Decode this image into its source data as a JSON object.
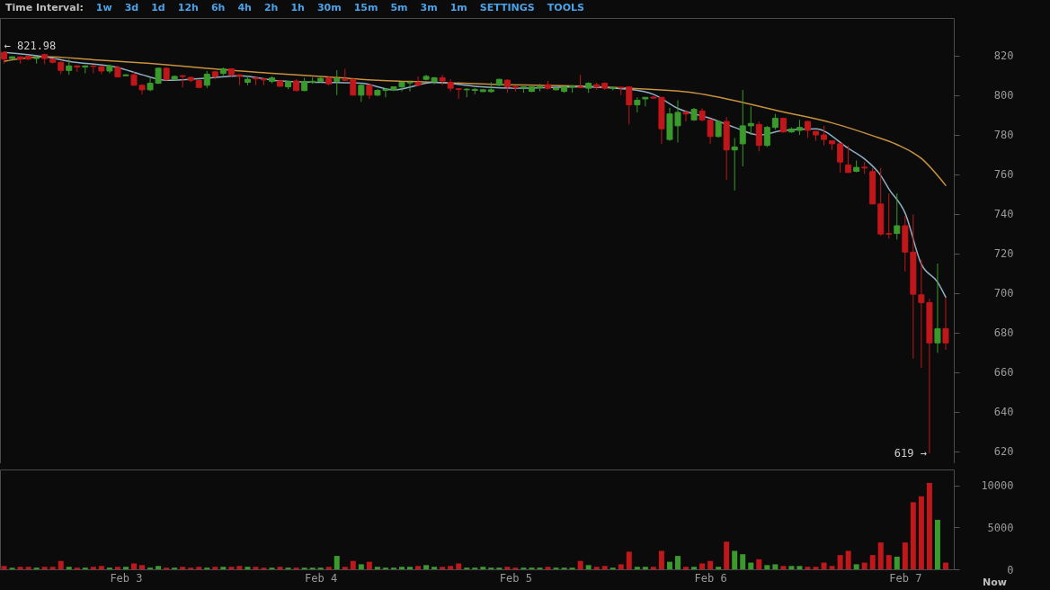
{
  "chart_data": [
    {
      "type": "candlestick",
      "tick_labels": "y",
      "annotations": [
        "Time Interval:",
        "1w",
        "3d",
        "1d",
        "12h",
        "6h",
        "4h",
        "2h",
        "1h",
        "30m",
        "15m",
        "5m",
        "3m",
        "1m",
        "SETTINGS",
        "TOOLS",
        {
          "text": "← 821.98",
          "x": "--02-02T09:00",
          "y": 821.98
        },
        {
          "text": "619 →",
          "x": "--02-07T03:00",
          "y": 619
        }
      ],
      "x": [
        "--02-02T09:00",
        "--02-02T10:00",
        "--02-02T11:00",
        "--02-02T12:00",
        "--02-02T13:00",
        "--02-02T14:00",
        "--02-02T15:00",
        "--02-02T16:00",
        "--02-02T17:00",
        "--02-02T18:00",
        "--02-02T19:00",
        "--02-02T20:00",
        "--02-02T21:00",
        "--02-02T22:00",
        "--02-02T23:00",
        "--02-03T00:00",
        "--02-03T01:00",
        "--02-03T02:00",
        "--02-03T03:00",
        "--02-03T04:00",
        "--02-03T05:00",
        "--02-03T06:00",
        "--02-03T07:00",
        "--02-03T08:00",
        "--02-03T09:00",
        "--02-03T10:00",
        "--02-03T11:00",
        "--02-03T12:00",
        "--02-03T13:00",
        "--02-03T14:00",
        "--02-03T15:00",
        "--02-03T16:00",
        "--02-03T17:00",
        "--02-03T18:00",
        "--02-03T19:00",
        "--02-03T20:00",
        "--02-03T21:00",
        "--02-03T22:00",
        "--02-03T23:00",
        "--02-04T00:00",
        "--02-04T01:00",
        "--02-04T02:00",
        "--02-04T03:00",
        "--02-04T04:00",
        "--02-04T05:00",
        "--02-04T06:00",
        "--02-04T07:00",
        "--02-04T08:00",
        "--02-04T09:00",
        "--02-04T10:00",
        "--02-04T11:00",
        "--02-04T12:00",
        "--02-04T13:00",
        "--02-04T14:00",
        "--02-04T15:00",
        "--02-04T16:00",
        "--02-04T17:00",
        "--02-04T18:00",
        "--02-04T19:00",
        "--02-04T20:00",
        "--02-04T21:00",
        "--02-04T22:00",
        "--02-04T23:00",
        "--02-05T00:00",
        "--02-05T01:00",
        "--02-05T02:00",
        "--02-05T03:00",
        "--02-05T04:00",
        "--02-05T05:00",
        "--02-05T06:00",
        "--02-05T07:00",
        "--02-05T08:00",
        "--02-05T09:00",
        "--02-05T10:00",
        "--02-05T11:00",
        "--02-05T12:00",
        "--02-05T13:00",
        "--02-05T14:00",
        "--02-05T15:00",
        "--02-05T16:00",
        "--02-05T17:00",
        "--02-05T18:00",
        "--02-05T19:00",
        "--02-05T20:00",
        "--02-05T21:00",
        "--02-05T22:00",
        "--02-05T23:00",
        "--02-06T00:00",
        "--02-06T01:00",
        "--02-06T02:00",
        "--02-06T03:00",
        "--02-06T04:00",
        "--02-06T05:00",
        "--02-06T06:00",
        "--02-06T07:00",
        "--02-06T08:00",
        "--02-06T09:00",
        "--02-06T10:00",
        "--02-06T11:00",
        "--02-06T12:00",
        "--02-06T13:00",
        "--02-06T14:00",
        "--02-06T15:00",
        "--02-06T16:00",
        "--02-06T17:00",
        "--02-06T18:00",
        "--02-06T19:00",
        "--02-06T20:00",
        "--02-06T21:00",
        "--02-06T22:00",
        "--02-06T23:00",
        "--02-07T00:00",
        "--02-07T01:00",
        "--02-07T02:00",
        "--02-07T03:00",
        "--02-07T04:00",
        "--02-07T05:00"
      ],
      "ohlc": [
        [
          821.6,
          821.98,
          816,
          818.2
        ],
        [
          818.5,
          819.6,
          818.3,
          819.4
        ],
        [
          819.4,
          819.6,
          815.9,
          818.2
        ],
        [
          819.7,
          820,
          817.8,
          818.2
        ],
        [
          818.5,
          819.5,
          816,
          819
        ],
        [
          820.5,
          821,
          815.6,
          818.5
        ],
        [
          818.2,
          818.5,
          816,
          816.6
        ],
        [
          816.6,
          817,
          810.6,
          812.5
        ],
        [
          812.5,
          818.2,
          810.3,
          814.8
        ],
        [
          814.8,
          815,
          811.8,
          814.2
        ],
        [
          814.2,
          815,
          811,
          814.8
        ],
        [
          814.8,
          815,
          811,
          814.5
        ],
        [
          814.4,
          814.8,
          810.6,
          812.2
        ],
        [
          812.2,
          815.5,
          811,
          814.8
        ],
        [
          814,
          815,
          809,
          809.2
        ],
        [
          809.8,
          810.5,
          809.5,
          810.3
        ],
        [
          810.3,
          811.8,
          804.8,
          805
        ],
        [
          805,
          805.5,
          800.4,
          802.7
        ],
        [
          802.7,
          808.7,
          802,
          806
        ],
        [
          806,
          814,
          805.7,
          813.6
        ],
        [
          813.6,
          814,
          807,
          808
        ],
        [
          808,
          810,
          808,
          809.5
        ],
        [
          809.8,
          810.3,
          803.9,
          809.4
        ],
        [
          809,
          809.3,
          806.5,
          807.5
        ],
        [
          807.5,
          807.8,
          803.6,
          803.9
        ],
        [
          805,
          812.2,
          803.6,
          810.6
        ],
        [
          811.8,
          812,
          808,
          809.5
        ],
        [
          811,
          814,
          810,
          813.3
        ],
        [
          813.3,
          813.6,
          809,
          810.3
        ],
        [
          810.3,
          810.5,
          805,
          809.5
        ],
        [
          806.5,
          810,
          805,
          808
        ],
        [
          808.7,
          809.2,
          805,
          808.2
        ],
        [
          808.2,
          808.5,
          805,
          807.7
        ],
        [
          807,
          809.5,
          806,
          808.7
        ],
        [
          807.2,
          807.7,
          804.2,
          804.5
        ],
        [
          804.2,
          807.2,
          803,
          806.9
        ],
        [
          807.2,
          808,
          802,
          802.3
        ],
        [
          802.3,
          808.7,
          802,
          806.9
        ],
        [
          806.5,
          809,
          805.7,
          807
        ],
        [
          807,
          809,
          806.5,
          808.5
        ],
        [
          808.8,
          809.5,
          805,
          805.7
        ],
        [
          807,
          812.6,
          800,
          808.5
        ],
        [
          808,
          813.3,
          807.2,
          807.5
        ],
        [
          808,
          808.3,
          799.8,
          800
        ],
        [
          800,
          805.5,
          796.6,
          805
        ],
        [
          805,
          805.3,
          798.1,
          800
        ],
        [
          800,
          803,
          799.5,
          802.4
        ],
        [
          802.4,
          803.5,
          798.9,
          802.9
        ],
        [
          802.7,
          804.5,
          802,
          804.2
        ],
        [
          804.2,
          806.8,
          801.9,
          806.5
        ],
        [
          806.2,
          807.2,
          801.9,
          806.5
        ],
        [
          806.5,
          809.5,
          804.5,
          805
        ],
        [
          808,
          810.3,
          807.5,
          809.5
        ],
        [
          806.9,
          809.2,
          805.5,
          808.8
        ],
        [
          808.8,
          810.3,
          805,
          807.2
        ],
        [
          806.5,
          808,
          801.9,
          803.5
        ],
        [
          803.2,
          803.5,
          798.1,
          802.9
        ],
        [
          802.7,
          803.5,
          798.9,
          803
        ],
        [
          802.4,
          803.5,
          800.5,
          802.9
        ],
        [
          801.8,
          803,
          801.5,
          802.7
        ],
        [
          801.8,
          806.5,
          801.2,
          802.7
        ],
        [
          805,
          808.3,
          804.5,
          808
        ],
        [
          807.6,
          808,
          801.2,
          804.2
        ],
        [
          804.2,
          805,
          801.9,
          803.8
        ],
        [
          803.8,
          804.5,
          801.2,
          804.2
        ],
        [
          801.9,
          804.5,
          801.5,
          804.2
        ],
        [
          803.8,
          805.7,
          801.9,
          804.2
        ],
        [
          805.3,
          807.2,
          802.7,
          803.5
        ],
        [
          802.7,
          803.8,
          802.4,
          803.5
        ],
        [
          801.9,
          804.5,
          801.2,
          804.2
        ],
        [
          804.2,
          805,
          801.2,
          804.6
        ],
        [
          804.2,
          810.3,
          803.5,
          803.8
        ],
        [
          803.5,
          806.5,
          801.2,
          806
        ],
        [
          805.3,
          806.3,
          802.7,
          804.2
        ],
        [
          806,
          806.5,
          802.7,
          803.5
        ],
        [
          803.5,
          804.2,
          802.4,
          803.9
        ],
        [
          804,
          804.2,
          800,
          803.7
        ],
        [
          804.2,
          804.5,
          785.2,
          795.1
        ],
        [
          795.1,
          798.9,
          791.3,
          797.4
        ],
        [
          798.1,
          799,
          794.3,
          798.9
        ],
        [
          799,
          799.6,
          798.1,
          798.5
        ],
        [
          798.9,
          799,
          775.4,
          783
        ],
        [
          777.6,
          793.6,
          776.9,
          790.5
        ],
        [
          784.5,
          797.4,
          776.1,
          791.3
        ],
        [
          791.3,
          792.3,
          786.7,
          790.5
        ],
        [
          787.5,
          793.6,
          787,
          792.8
        ],
        [
          792,
          793.4,
          786.7,
          787.5
        ],
        [
          787.5,
          788,
          775.4,
          779.1
        ],
        [
          779.1,
          787,
          778.5,
          786.7
        ],
        [
          786.7,
          789,
          757.1,
          772.3
        ],
        [
          772.3,
          778.4,
          751.8,
          773.8
        ],
        [
          775.4,
          802.7,
          764,
          784.5
        ],
        [
          784.5,
          794.3,
          779.9,
          785.7
        ],
        [
          785.2,
          786.7,
          771.6,
          774.6
        ],
        [
          774.6,
          784.5,
          773.8,
          783.7
        ],
        [
          783.7,
          790.5,
          782.5,
          788.3
        ],
        [
          788.3,
          788.6,
          781,
          781.4
        ],
        [
          781.4,
          783.7,
          781,
          782.9
        ],
        [
          782.2,
          787.5,
          779.9,
          783.7
        ],
        [
          786.7,
          787,
          778.4,
          782.2
        ],
        [
          781.7,
          782,
          776.9,
          779.9
        ],
        [
          779.9,
          784.5,
          774.6,
          777.6
        ],
        [
          776.9,
          777.2,
          772.3,
          775.4
        ],
        [
          775.4,
          775.8,
          760.9,
          766.2
        ],
        [
          764.7,
          774.6,
          760.9,
          760.9
        ],
        [
          761.5,
          767,
          761,
          763.5
        ],
        [
          763.6,
          766.2,
          760.2,
          763.2
        ],
        [
          761.4,
          763.2,
          745,
          745
        ],
        [
          745,
          763.2,
          729,
          729.8
        ],
        [
          730,
          750.3,
          727.5,
          729.8
        ],
        [
          730.1,
          750.3,
          727,
          734
        ],
        [
          734,
          738.9,
          710.8,
          720.7
        ],
        [
          720.7,
          739.7,
          666.8,
          699.4
        ],
        [
          699.1,
          716.9,
          662.2,
          695.2
        ],
        [
          695.2,
          697.1,
          619,
          674.8
        ],
        [
          674.8,
          714.9,
          669.8,
          682
        ],
        [
          682,
          697.6,
          671.3,
          674.8
        ]
      ],
      "colors": [
        "#c0171b",
        "#3a9a2c",
        "#c0171b",
        "#c0171b",
        "#3a9a2c",
        "#c0171b",
        "#c0171b",
        "#c0171b",
        "#3a9a2c",
        "#c0171b",
        "#3a9a2c",
        "#c0171b",
        "#c0171b",
        "#3a9a2c",
        "#c0171b",
        "#3a9a2c",
        "#c0171b",
        "#c0171b",
        "#3a9a2c",
        "#3a9a2c",
        "#c0171b",
        "#3a9a2c",
        "#c0171b",
        "#c0171b",
        "#c0171b",
        "#3a9a2c",
        "#c0171b",
        "#3a9a2c",
        "#c0171b",
        "#c0171b",
        "#3a9a2c",
        "#c0171b",
        "#c0171b",
        "#3a9a2c",
        "#c0171b",
        "#3a9a2c",
        "#c0171b",
        "#3a9a2c",
        "#3a9a2c",
        "#3a9a2c",
        "#c0171b",
        "#3a9a2c",
        "#c0171b",
        "#c0171b",
        "#3a9a2c",
        "#c0171b",
        "#3a9a2c",
        "#3a9a2c",
        "#3a9a2c",
        "#3a9a2c",
        "#3a9a2c",
        "#c0171b",
        "#3a9a2c",
        "#3a9a2c",
        "#c0171b",
        "#c0171b",
        "#c0171b",
        "#3a9a2c",
        "#3a9a2c",
        "#3a9a2c",
        "#3a9a2c",
        "#3a9a2c",
        "#c0171b",
        "#c0171b",
        "#3a9a2c",
        "#3a9a2c",
        "#3a9a2c",
        "#c0171b",
        "#3a9a2c",
        "#3a9a2c",
        "#3a9a2c",
        "#c0171b",
        "#3a9a2c",
        "#c0171b",
        "#c0171b",
        "#3a9a2c",
        "#c0171b",
        "#c0171b",
        "#3a9a2c",
        "#3a9a2c",
        "#c0171b",
        "#c0171b",
        "#3a9a2c",
        "#3a9a2c",
        "#c0171b",
        "#3a9a2c",
        "#c0171b",
        "#c0171b",
        "#3a9a2c",
        "#c0171b",
        "#3a9a2c",
        "#3a9a2c",
        "#3a9a2c",
        "#c0171b",
        "#3a9a2c",
        "#3a9a2c",
        "#c0171b",
        "#3a9a2c",
        "#3a9a2c",
        "#c0171b",
        "#c0171b",
        "#c0171b",
        "#c0171b",
        "#c0171b",
        "#c0171b",
        "#3a9a2c",
        "#c0171b",
        "#c0171b",
        "#c0171b",
        "#c0171b",
        "#3a9a2c",
        "#c0171b",
        "#c0171b",
        "#c0171b",
        "#c0171b",
        "#3a9a2c",
        "#c0171b"
      ],
      "series": [
        {
          "type": "line",
          "color": "#c8923e",
          "x": [
            "--02-02T09:00",
            "--02-02T14:00",
            "--02-02T20:00",
            "--02-03T03:00",
            "--02-03T10:00",
            "--02-03T18:00",
            "--02-04T00:00",
            "--02-04T05:00",
            "--02-04T11:00",
            "--02-04T22:00",
            "--02-05T09:00",
            "--02-05T14:00",
            "--02-05T22:00",
            "--02-06T09:00",
            "--02-06T15:00",
            "--02-06T20:00",
            "--02-06T23:00",
            "--02-07T02:00",
            "--02-07T05:00"
          ],
          "values": [
            817.1,
            819.4,
            817.9,
            816,
            813.6,
            811,
            809.5,
            808,
            806.9,
            805.4,
            804.5,
            803.5,
            801.2,
            791.5,
            786,
            779.5,
            775,
            768,
            754.4
          ]
        },
        {
          "type": "line",
          "color": "#8fb0c4",
          "x": [
            "--02-02T09:00",
            "--02-02T14:00",
            "--02-02T17:00",
            "--02-02T23:00",
            "--02-03T02:00",
            "--02-03T05:00",
            "--02-03T10:00",
            "--02-03T14:00",
            "--02-03T19:00",
            "--02-04T00:00",
            "--02-04T05:00",
            "--02-04T09:00",
            "--02-04T14:00",
            "--02-04T19:00",
            "--02-05T01:00",
            "--02-05T08:00",
            "--02-05T14:00",
            "--02-05T17:00",
            "--02-05T20:00",
            "--02-06T00:00",
            "--02-06T03:00",
            "--02-06T06:00",
            "--02-06T09:00",
            "--02-06T13:00",
            "--02-06T17:00",
            "--02-06T19:00",
            "--02-06T21:00",
            "--02-06T22:00",
            "--02-07T00:00",
            "--02-07T02:00",
            "--02-07T04:00",
            "--02-07T05:00"
          ],
          "values": [
            821.6,
            819.4,
            817.1,
            814,
            810.3,
            807.5,
            808.7,
            809.8,
            807.2,
            806.5,
            806,
            802.7,
            806.5,
            804.5,
            803.5,
            804.2,
            803,
            800.4,
            793.3,
            788.3,
            783.7,
            779.9,
            782.2,
            783,
            773.1,
            767.8,
            759.4,
            752.6,
            740.4,
            714.6,
            705.5,
            697.9
          ]
        }
      ],
      "xlim": [
        "--02-02T08:30",
        "--02-07T06:00"
      ],
      "xticks": [
        {
          "value": "--02-03",
          "label": "Feb 3"
        },
        {
          "value": "--02-04",
          "label": "Feb 4"
        },
        {
          "value": "--02-05",
          "label": "Feb 5"
        },
        {
          "value": "--02-06",
          "label": "Feb 6"
        },
        {
          "value": "--02-07",
          "label": "Feb 7"
        }
      ],
      "ylim": [
        614,
        839
      ],
      "yticks": [
        620,
        640,
        660,
        680,
        700,
        720,
        740,
        760,
        780,
        800,
        820
      ]
    },
    {
      "type": "bar",
      "annotations": [
        "Now"
      ],
      "x": [
        "--02-02T09:00",
        "--02-02T10:00",
        "--02-02T11:00",
        "--02-02T12:00",
        "--02-02T13:00",
        "--02-02T14:00",
        "--02-02T15:00",
        "--02-02T16:00",
        "--02-02T17:00",
        "--02-02T18:00",
        "--02-02T19:00",
        "--02-02T20:00",
        "--02-02T21:00",
        "--02-02T22:00",
        "--02-02T23:00",
        "--02-03T00:00",
        "--02-03T01:00",
        "--02-03T02:00",
        "--02-03T03:00",
        "--02-03T04:00",
        "--02-03T05:00",
        "--02-03T06:00",
        "--02-03T07:00",
        "--02-03T08:00",
        "--02-03T09:00",
        "--02-03T10:00",
        "--02-03T11:00",
        "--02-03T12:00",
        "--02-03T13:00",
        "--02-03T14:00",
        "--02-03T15:00",
        "--02-03T16:00",
        "--02-03T17:00",
        "--02-03T18:00",
        "--02-03T19:00",
        "--02-03T20:00",
        "--02-03T21:00",
        "--02-03T22:00",
        "--02-03T23:00",
        "--02-04T00:00",
        "--02-04T01:00",
        "--02-04T02:00",
        "--02-04T03:00",
        "--02-04T04:00",
        "--02-04T05:00",
        "--02-04T06:00",
        "--02-04T07:00",
        "--02-04T08:00",
        "--02-04T09:00",
        "--02-04T10:00",
        "--02-04T11:00",
        "--02-04T12:00",
        "--02-04T13:00",
        "--02-04T14:00",
        "--02-04T15:00",
        "--02-04T16:00",
        "--02-04T17:00",
        "--02-04T18:00",
        "--02-04T19:00",
        "--02-04T20:00",
        "--02-04T21:00",
        "--02-04T22:00",
        "--02-04T23:00",
        "--02-05T00:00",
        "--02-05T01:00",
        "--02-05T02:00",
        "--02-05T03:00",
        "--02-05T04:00",
        "--02-05T05:00",
        "--02-05T06:00",
        "--02-05T07:00",
        "--02-05T08:00",
        "--02-05T09:00",
        "--02-05T10:00",
        "--02-05T11:00",
        "--02-05T12:00",
        "--02-05T13:00",
        "--02-05T14:00",
        "--02-05T15:00",
        "--02-05T16:00",
        "--02-05T17:00",
        "--02-05T18:00",
        "--02-05T19:00",
        "--02-05T20:00",
        "--02-05T21:00",
        "--02-05T22:00",
        "--02-05T23:00",
        "--02-06T00:00",
        "--02-06T01:00",
        "--02-06T02:00",
        "--02-06T03:00",
        "--02-06T04:00",
        "--02-06T05:00",
        "--02-06T06:00",
        "--02-06T07:00",
        "--02-06T08:00",
        "--02-06T09:00",
        "--02-06T10:00",
        "--02-06T11:00",
        "--02-06T12:00",
        "--02-06T13:00",
        "--02-06T14:00",
        "--02-06T15:00",
        "--02-06T16:00",
        "--02-06T17:00",
        "--02-06T18:00",
        "--02-06T19:00",
        "--02-06T20:00",
        "--02-06T21:00",
        "--02-06T22:00",
        "--02-06T23:00",
        "--02-07T00:00",
        "--02-07T01:00",
        "--02-07T02:00",
        "--02-07T03:00",
        "--02-07T04:00",
        "--02-07T05:00"
      ],
      "values": [
        400,
        200,
        300,
        300,
        200,
        300,
        300,
        1000,
        300,
        200,
        200,
        300,
        400,
        200,
        300,
        300,
        700,
        500,
        200,
        400,
        200,
        200,
        300,
        200,
        300,
        200,
        300,
        300,
        300,
        400,
        300,
        300,
        200,
        200,
        300,
        200,
        200,
        200,
        200,
        200,
        300,
        1600,
        300,
        1000,
        600,
        900,
        300,
        200,
        200,
        300,
        300,
        400,
        500,
        300,
        300,
        400,
        700,
        200,
        200,
        300,
        200,
        200,
        300,
        200,
        200,
        200,
        200,
        300,
        200,
        200,
        200,
        1000,
        500,
        300,
        400,
        200,
        600,
        2100,
        300,
        300,
        300,
        2200,
        900,
        1600,
        300,
        300,
        700,
        1000,
        300,
        3300,
        2200,
        1800,
        800,
        1200,
        500,
        600,
        400,
        400,
        400,
        300,
        300,
        800,
        400,
        1700,
        2200,
        600,
        800,
        1700,
        3200,
        1700,
        1500,
        3200,
        8000,
        8700,
        10300,
        5900,
        800
      ],
      "colors": [
        "#c0171b",
        "#3a9a2c",
        "#c0171b",
        "#c0171b",
        "#3a9a2c",
        "#c0171b",
        "#c0171b",
        "#c0171b",
        "#3a9a2c",
        "#c0171b",
        "#3a9a2c",
        "#c0171b",
        "#c0171b",
        "#3a9a2c",
        "#c0171b",
        "#3a9a2c",
        "#c0171b",
        "#c0171b",
        "#3a9a2c",
        "#3a9a2c",
        "#c0171b",
        "#3a9a2c",
        "#c0171b",
        "#c0171b",
        "#c0171b",
        "#3a9a2c",
        "#c0171b",
        "#3a9a2c",
        "#c0171b",
        "#c0171b",
        "#3a9a2c",
        "#c0171b",
        "#c0171b",
        "#3a9a2c",
        "#c0171b",
        "#3a9a2c",
        "#c0171b",
        "#3a9a2c",
        "#3a9a2c",
        "#3a9a2c",
        "#c0171b",
        "#3a9a2c",
        "#c0171b",
        "#c0171b",
        "#3a9a2c",
        "#c0171b",
        "#3a9a2c",
        "#3a9a2c",
        "#3a9a2c",
        "#3a9a2c",
        "#3a9a2c",
        "#c0171b",
        "#3a9a2c",
        "#3a9a2c",
        "#c0171b",
        "#c0171b",
        "#c0171b",
        "#3a9a2c",
        "#3a9a2c",
        "#3a9a2c",
        "#3a9a2c",
        "#3a9a2c",
        "#c0171b",
        "#c0171b",
        "#3a9a2c",
        "#3a9a2c",
        "#3a9a2c",
        "#c0171b",
        "#3a9a2c",
        "#3a9a2c",
        "#3a9a2c",
        "#c0171b",
        "#3a9a2c",
        "#c0171b",
        "#c0171b",
        "#3a9a2c",
        "#c0171b",
        "#c0171b",
        "#3a9a2c",
        "#3a9a2c",
        "#c0171b",
        "#c0171b",
        "#3a9a2c",
        "#3a9a2c",
        "#c0171b",
        "#3a9a2c",
        "#c0171b",
        "#c0171b",
        "#3a9a2c",
        "#c0171b",
        "#3a9a2c",
        "#3a9a2c",
        "#3a9a2c",
        "#c0171b",
        "#3a9a2c",
        "#3a9a2c",
        "#c0171b",
        "#3a9a2c",
        "#3a9a2c",
        "#c0171b",
        "#c0171b",
        "#c0171b",
        "#c0171b",
        "#c0171b",
        "#c0171b",
        "#3a9a2c",
        "#c0171b",
        "#c0171b",
        "#c0171b",
        "#c0171b",
        "#3a9a2c",
        "#c0171b",
        "#c0171b",
        "#c0171b",
        "#c0171b",
        "#3a9a2c",
        "#c0171b"
      ],
      "xlim": [
        "--02-02T08:30",
        "--02-07T06:00"
      ],
      "xticks": [
        {
          "value": "--02-03",
          "label": "Feb 3"
        },
        {
          "value": "--02-04",
          "label": "Feb 4"
        },
        {
          "value": "--02-05",
          "label": "Feb 5"
        },
        {
          "value": "--02-06",
          "label": "Feb 6"
        },
        {
          "value": "--02-07",
          "label": "Feb 7"
        }
      ],
      "ylim": [
        0,
        11900
      ],
      "yticks": [
        0,
        5000,
        10000
      ]
    }
  ]
}
